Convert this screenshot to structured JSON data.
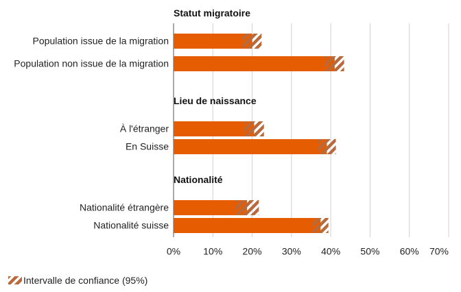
{
  "chart_data": {
    "type": "bar",
    "groups": [
      {
        "title": "Statut migratoire",
        "categories": [
          "Population issue de la migration",
          "Population non issue de la migration"
        ],
        "values": [
          20,
          41
        ],
        "errors": [
          2.4,
          2.4
        ]
      },
      {
        "title": "Lieu de naissance",
        "categories": [
          "À l'étranger",
          "En Suisse"
        ],
        "values": [
          20.5,
          39
        ],
        "errors": [
          2.5,
          2.3
        ]
      },
      {
        "title": "Nationalité",
        "categories": [
          "Nationalité étrangère",
          "Nationalité suisse"
        ],
        "values": [
          18.7,
          37.4
        ],
        "errors": [
          3,
          2
        ]
      }
    ],
    "color": "#e65c00",
    "ci_color": "#b86a3c",
    "legend": "Intervalle de confiance (95%)",
    "xlim": [
      0,
      70
    ],
    "xticks": [
      {
        "value": 0,
        "label": "0%"
      },
      {
        "value": 10,
        "label": "10%"
      },
      {
        "value": 20,
        "label": "20%"
      },
      {
        "value": 30,
        "label": "30%"
      },
      {
        "value": 40,
        "label": "40%"
      },
      {
        "value": 50,
        "label": "50%"
      },
      {
        "value": 60,
        "label": "60%"
      },
      {
        "value": 70,
        "label": "70%"
      }
    ],
    "grid": true
  }
}
